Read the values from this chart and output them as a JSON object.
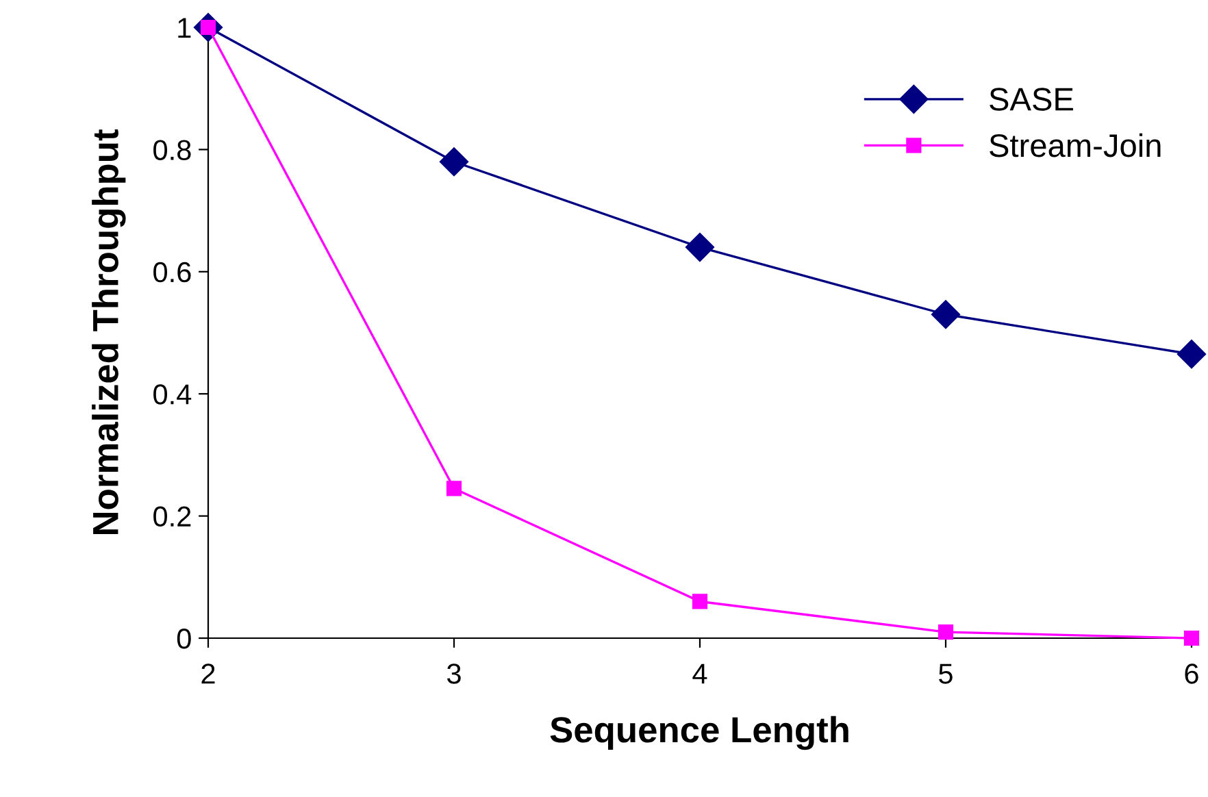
{
  "chart_data": {
    "type": "line",
    "xlabel": "Sequence Length",
    "ylabel": "Normalized Throughput",
    "x": [
      2,
      3,
      4,
      5,
      6
    ],
    "series": [
      {
        "name": "SASE",
        "color": "#000080",
        "marker": "diamond",
        "values": [
          1,
          0.78,
          0.64,
          0.53,
          0.465
        ]
      },
      {
        "name": "Stream-Join",
        "color": "#ff00ff",
        "marker": "square",
        "values": [
          1,
          0.245,
          0.06,
          0.01,
          0.0
        ]
      }
    ],
    "xlim": [
      2,
      6
    ],
    "xticks": [
      2,
      3,
      4,
      5,
      6
    ],
    "ylim": [
      0,
      1
    ],
    "yticks": [
      0,
      {
        "value": 0.2,
        "label": "0.2"
      },
      {
        "value": 0.4,
        "label": "0.4"
      },
      {
        "value": 0.6,
        "label": "0.6"
      },
      {
        "value": 0.8,
        "label": "0.8"
      },
      1
    ],
    "grid": false,
    "legend": "top right",
    "line_style": "solid"
  }
}
